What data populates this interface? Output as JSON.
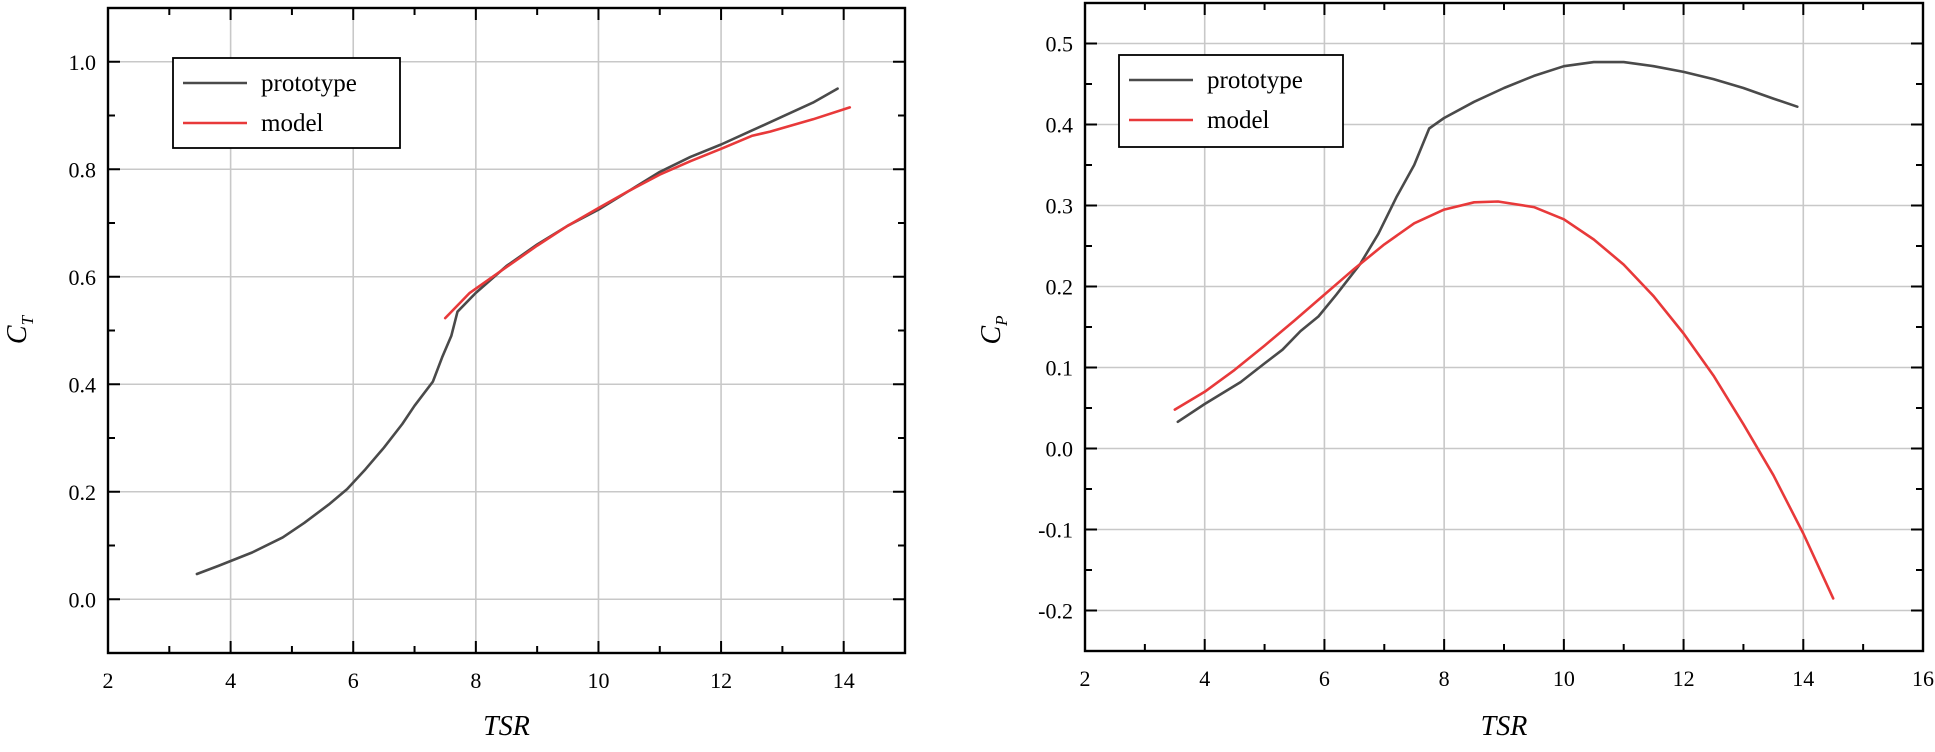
{
  "colors": {
    "prototype": "#4a4a4a",
    "model": "#e8393a",
    "grid": "#c8c8c8",
    "frame": "#000000"
  },
  "chart_data": [
    {
      "type": "line",
      "title": "",
      "xlabel": "TSR",
      "ylabel": {
        "main": "C",
        "subscript": "T"
      },
      "xlim": [
        2,
        15
      ],
      "ylim": [
        -0.1,
        1.1
      ],
      "xticks": [
        2,
        4,
        6,
        8,
        10,
        12,
        14
      ],
      "xtick_labels": [
        "2",
        "4",
        "6",
        "8",
        "10",
        "12",
        "14"
      ],
      "yticks": [
        0.0,
        0.2,
        0.4,
        0.6,
        0.8,
        1.0
      ],
      "ytick_labels": [
        "0.0",
        "0.2",
        "0.4",
        "0.6",
        "0.8",
        "1.0"
      ],
      "grid": true,
      "legend_position": "top-left",
      "series": [
        {
          "name": "prototype",
          "color_key": "prototype",
          "points": [
            [
              3.45,
              0.047
            ],
            [
              3.8,
              0.062
            ],
            [
              4.35,
              0.087
            ],
            [
              4.85,
              0.115
            ],
            [
              5.2,
              0.142
            ],
            [
              5.6,
              0.176
            ],
            [
              5.9,
              0.205
            ],
            [
              6.2,
              0.242
            ],
            [
              6.5,
              0.282
            ],
            [
              6.8,
              0.326
            ],
            [
              7.0,
              0.36
            ],
            [
              7.3,
              0.405
            ],
            [
              7.45,
              0.45
            ],
            [
              7.6,
              0.49
            ],
            [
              7.7,
              0.535
            ],
            [
              8.0,
              0.57
            ],
            [
              8.5,
              0.62
            ],
            [
              9.0,
              0.66
            ],
            [
              9.5,
              0.695
            ],
            [
              10.0,
              0.725
            ],
            [
              10.5,
              0.76
            ],
            [
              11.0,
              0.795
            ],
            [
              11.5,
              0.823
            ],
            [
              12.0,
              0.846
            ],
            [
              12.5,
              0.872
            ],
            [
              13.0,
              0.898
            ],
            [
              13.5,
              0.924
            ],
            [
              13.9,
              0.95
            ]
          ]
        },
        {
          "name": "model",
          "color_key": "model",
          "points": [
            [
              7.5,
              0.523
            ],
            [
              7.9,
              0.57
            ],
            [
              8.5,
              0.618
            ],
            [
              9.0,
              0.658
            ],
            [
              9.5,
              0.695
            ],
            [
              10.0,
              0.728
            ],
            [
              10.5,
              0.76
            ],
            [
              11.0,
              0.79
            ],
            [
              11.5,
              0.815
            ],
            [
              12.0,
              0.838
            ],
            [
              12.5,
              0.862
            ],
            [
              12.8,
              0.87
            ],
            [
              13.5,
              0.893
            ],
            [
              14.1,
              0.915
            ]
          ]
        }
      ]
    },
    {
      "type": "line",
      "title": "",
      "xlabel": "TSR",
      "ylabel": {
        "main": "C",
        "subscript": "P"
      },
      "xlim": [
        2,
        16
      ],
      "ylim": [
        -0.25,
        0.55
      ],
      "xticks": [
        2,
        4,
        6,
        8,
        10,
        12,
        14,
        16
      ],
      "xtick_labels": [
        "2",
        "4",
        "6",
        "8",
        "10",
        "12",
        "14",
        "16"
      ],
      "yticks": [
        -0.2,
        -0.1,
        0.0,
        0.1,
        0.2,
        0.3,
        0.4,
        0.5
      ],
      "ytick_labels": [
        "-0.2",
        "-0.1",
        "0.0",
        "0.1",
        "0.2",
        "0.3",
        "0.4",
        "0.5"
      ],
      "grid": true,
      "legend_position": "top-left",
      "series": [
        {
          "name": "prototype",
          "color_key": "prototype",
          "points": [
            [
              3.55,
              0.033
            ],
            [
              4.0,
              0.055
            ],
            [
              4.6,
              0.082
            ],
            [
              5.0,
              0.105
            ],
            [
              5.3,
              0.122
            ],
            [
              5.6,
              0.145
            ],
            [
              5.9,
              0.163
            ],
            [
              6.2,
              0.19
            ],
            [
              6.6,
              0.228
            ],
            [
              6.9,
              0.265
            ],
            [
              7.2,
              0.31
            ],
            [
              7.5,
              0.35
            ],
            [
              7.75,
              0.395
            ],
            [
              8.0,
              0.408
            ],
            [
              8.5,
              0.428
            ],
            [
              9.0,
              0.445
            ],
            [
              9.5,
              0.46
            ],
            [
              10.0,
              0.472
            ],
            [
              10.5,
              0.477
            ],
            [
              11.0,
              0.477
            ],
            [
              11.5,
              0.472
            ],
            [
              12.0,
              0.465
            ],
            [
              12.5,
              0.456
            ],
            [
              13.0,
              0.445
            ],
            [
              13.5,
              0.432
            ],
            [
              13.9,
              0.422
            ]
          ]
        },
        {
          "name": "model",
          "color_key": "model",
          "points": [
            [
              3.5,
              0.048
            ],
            [
              4.0,
              0.07
            ],
            [
              4.5,
              0.097
            ],
            [
              5.0,
              0.127
            ],
            [
              5.5,
              0.158
            ],
            [
              6.0,
              0.19
            ],
            [
              6.5,
              0.222
            ],
            [
              7.0,
              0.252
            ],
            [
              7.5,
              0.278
            ],
            [
              8.0,
              0.295
            ],
            [
              8.5,
              0.304
            ],
            [
              8.9,
              0.305
            ],
            [
              9.5,
              0.298
            ],
            [
              10.0,
              0.283
            ],
            [
              10.5,
              0.258
            ],
            [
              11.0,
              0.227
            ],
            [
              11.5,
              0.188
            ],
            [
              12.0,
              0.142
            ],
            [
              12.5,
              0.09
            ],
            [
              13.0,
              0.03
            ],
            [
              13.5,
              -0.033
            ],
            [
              14.0,
              -0.105
            ],
            [
              14.5,
              -0.185
            ]
          ]
        }
      ]
    }
  ]
}
